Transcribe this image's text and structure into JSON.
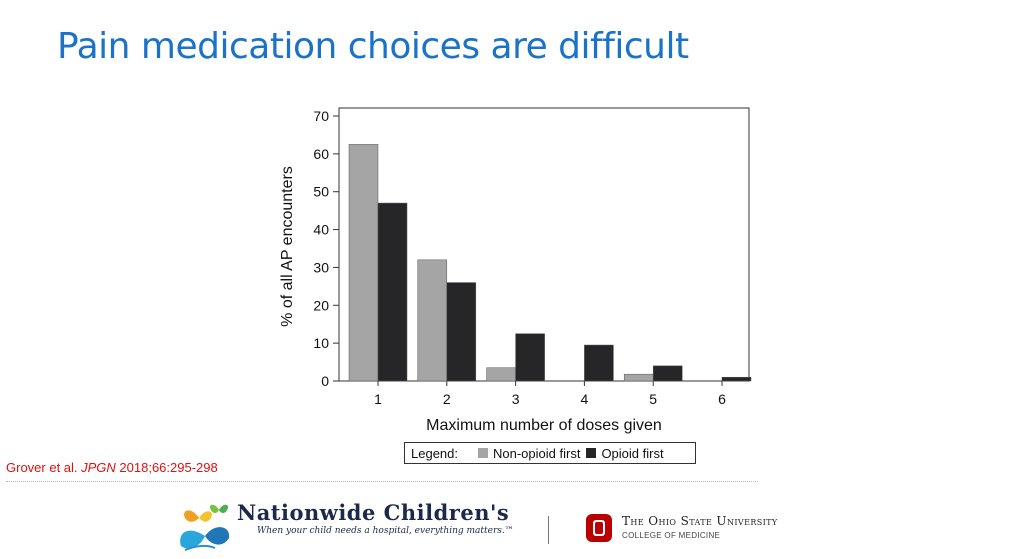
{
  "slide": {
    "title": "Pain medication choices are difficult",
    "citation": {
      "authors": "Grover et al. ",
      "journal": "JPGN",
      "details": " 2018;66:295-298"
    }
  },
  "colors": {
    "title": "#1a73c8",
    "non_opioid": "#a5a5a5",
    "opioid": "#262628",
    "citation": "#e01010"
  },
  "chart_data": {
    "type": "bar",
    "categories": [
      "1",
      "2",
      "3",
      "4",
      "5",
      "6"
    ],
    "series": [
      {
        "name": "Non-opioid first",
        "values": [
          62.5,
          32,
          3.5,
          0,
          1.8,
          0
        ]
      },
      {
        "name": "Opioid first",
        "values": [
          47,
          26,
          12.5,
          9.5,
          4,
          1
        ]
      }
    ],
    "xlabel": "Maximum number of doses given",
    "ylabel": "% of all AP encounters",
    "ylim": [
      0,
      70
    ],
    "yticks": [
      "0",
      "10",
      "20",
      "30",
      "40",
      "50",
      "60",
      "70"
    ],
    "legend": {
      "label": "Legend:",
      "placement": "bottom-center"
    },
    "grid": false
  },
  "logos": {
    "nationwide": {
      "name": "Nationwide Children's",
      "tagline": "When your child needs a hospital, everything matters.™"
    },
    "osu": {
      "name": "The Ohio State University",
      "college": "COLLEGE OF MEDICINE"
    }
  }
}
